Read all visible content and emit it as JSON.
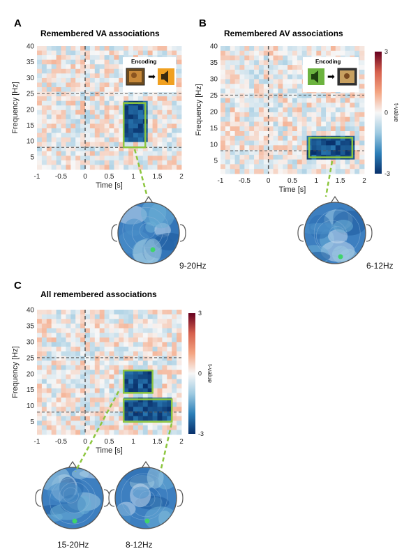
{
  "panels": {
    "A": {
      "letter": "A",
      "title": "Remembered VA associations",
      "encoding_label": "Encoding",
      "encoding_order": [
        "image-icon",
        "speaker-icon"
      ],
      "topo_label": "9-20Hz"
    },
    "B": {
      "letter": "B",
      "title": "Remembered AV associations",
      "encoding_label": "Encoding",
      "encoding_order": [
        "speaker-icon",
        "image-icon"
      ],
      "topo_label": "6-12Hz"
    },
    "C": {
      "letter": "C",
      "title": "All remembered associations",
      "topo_labels": [
        "15-20Hz",
        "8-12Hz"
      ]
    }
  },
  "axes": {
    "xlabel": "Time [s]",
    "ylabel": "Frequency [Hz]",
    "xticks": [
      "-1",
      "-0.5",
      "0",
      "0.5",
      "1",
      "1.5",
      "2"
    ],
    "yticks": [
      "40",
      "35",
      "30",
      "25",
      "20",
      "15",
      "10",
      "5"
    ],
    "xlim": [
      -1,
      2
    ],
    "ylim": [
      1,
      40
    ]
  },
  "colorbar": {
    "label": "t-value",
    "ticks": [
      "3",
      "0",
      "-3"
    ],
    "range": [
      -3,
      3
    ],
    "colors": [
      "#08306b",
      "#2c7fb8",
      "#9ecae1",
      "#f7f7f7",
      "#f4a582",
      "#d6604d",
      "#67001f"
    ]
  },
  "colors": {
    "highlight_box": "#8dc63f",
    "dashed_line": "#555555",
    "electrode": "#3fd46a"
  },
  "chart_data": [
    {
      "type": "heatmap",
      "title": "Remembered VA associations",
      "xlabel": "Time [s]",
      "ylabel": "Frequency [Hz]",
      "xlim": [
        -1,
        2
      ],
      "ylim": [
        1,
        40
      ],
      "reference_lines": {
        "time": 0,
        "frequencies": [
          8,
          25
        ]
      },
      "significant_clusters": [
        {
          "time": [
            0.8,
            1.25
          ],
          "freq": [
            9,
            22
          ]
        }
      ],
      "highlight_boxes": [
        {
          "time": [
            0.8,
            1.25
          ],
          "freq": [
            8,
            22
          ]
        }
      ]
    },
    {
      "type": "heatmap",
      "title": "Remembered AV associations",
      "xlabel": "Time [s]",
      "ylabel": "Frequency [Hz]",
      "xlim": [
        -1,
        2
      ],
      "ylim": [
        1,
        40
      ],
      "reference_lines": {
        "time": 0,
        "frequencies": [
          8,
          25
        ]
      },
      "significant_clusters": [
        {
          "time": [
            0.85,
            1.75
          ],
          "freq": [
            6,
            12
          ]
        }
      ],
      "highlight_boxes": [
        {
          "time": [
            0.85,
            1.75
          ],
          "freq": [
            6,
            12
          ]
        }
      ]
    },
    {
      "type": "heatmap",
      "title": "All remembered associations",
      "xlabel": "Time [s]",
      "ylabel": "Frequency [Hz]",
      "xlim": [
        -1,
        2
      ],
      "ylim": [
        1,
        40
      ],
      "reference_lines": {
        "time": 0,
        "frequencies": [
          8,
          25
        ]
      },
      "significant_clusters": [
        {
          "time": [
            0.8,
            1.4
          ],
          "freq": [
            14,
            21
          ]
        },
        {
          "time": [
            0.8,
            1.8
          ],
          "freq": [
            5,
            12
          ]
        }
      ],
      "highlight_boxes": [
        {
          "time": [
            0.8,
            1.4
          ],
          "freq": [
            14,
            21
          ]
        },
        {
          "time": [
            0.8,
            1.8
          ],
          "freq": [
            5,
            12
          ]
        }
      ]
    }
  ]
}
